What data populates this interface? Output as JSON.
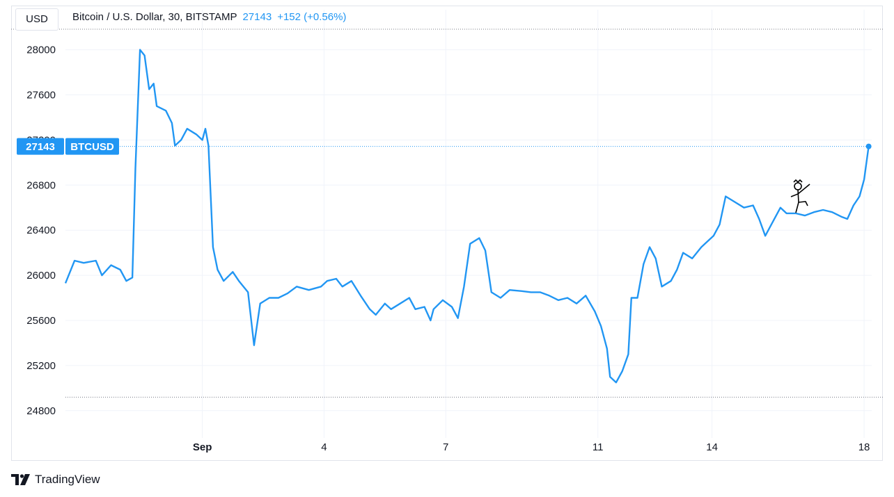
{
  "header": {
    "currency_label": "USD",
    "symbol_text": "Bitcoin / U.S. Dollar, 30, BITSTAMP",
    "last_price": "27143",
    "change": "+152 (+0.56%)"
  },
  "price_tag": {
    "value": "27143",
    "ticker": "BTCUSD"
  },
  "branding": {
    "name": "TradingView"
  },
  "colors": {
    "line": "#2196f3",
    "grid": "#f0f3fa",
    "text": "#131722",
    "tag": "#2196f3"
  },
  "chart_data": {
    "type": "line",
    "series": [
      {
        "values": [
          [
            0.0,
            25930
          ],
          [
            0.3,
            26130
          ],
          [
            0.6,
            26110
          ],
          [
            1.0,
            26130
          ],
          [
            1.2,
            26000
          ],
          [
            1.5,
            26090
          ],
          [
            1.8,
            26050
          ],
          [
            2.0,
            25950
          ],
          [
            2.2,
            25980
          ],
          [
            2.3,
            26950
          ],
          [
            2.45,
            28000
          ],
          [
            2.6,
            27950
          ],
          [
            2.75,
            27650
          ],
          [
            2.9,
            27700
          ],
          [
            3.0,
            27500
          ],
          [
            3.3,
            27460
          ],
          [
            3.5,
            27350
          ],
          [
            3.6,
            27150
          ],
          [
            3.8,
            27200
          ],
          [
            4.0,
            27300
          ],
          [
            4.3,
            27250
          ],
          [
            4.5,
            27200
          ],
          [
            4.6,
            27300
          ],
          [
            4.7,
            27150
          ],
          [
            4.85,
            26250
          ],
          [
            5.0,
            26050
          ],
          [
            5.2,
            25950
          ],
          [
            5.5,
            26030
          ],
          [
            5.7,
            25950
          ],
          [
            6.0,
            25850
          ],
          [
            6.2,
            25380
          ],
          [
            6.4,
            25750
          ],
          [
            6.7,
            25800
          ],
          [
            7.0,
            25800
          ],
          [
            7.3,
            25840
          ],
          [
            7.6,
            25900
          ],
          [
            8.0,
            25870
          ],
          [
            8.4,
            25900
          ],
          [
            8.6,
            25950
          ],
          [
            8.9,
            25970
          ],
          [
            9.1,
            25900
          ],
          [
            9.4,
            25950
          ],
          [
            9.7,
            25820
          ],
          [
            10.0,
            25700
          ],
          [
            10.2,
            25650
          ],
          [
            10.5,
            25750
          ],
          [
            10.7,
            25700
          ],
          [
            11.0,
            25750
          ],
          [
            11.3,
            25800
          ],
          [
            11.5,
            25700
          ],
          [
            11.8,
            25720
          ],
          [
            12.0,
            25600
          ],
          [
            12.1,
            25700
          ],
          [
            12.4,
            25780
          ],
          [
            12.7,
            25720
          ],
          [
            12.9,
            25620
          ],
          [
            13.1,
            25900
          ],
          [
            13.3,
            26280
          ],
          [
            13.6,
            26330
          ],
          [
            13.8,
            26220
          ],
          [
            14.0,
            25850
          ],
          [
            14.3,
            25800
          ],
          [
            14.6,
            25870
          ],
          [
            15.0,
            25860
          ],
          [
            15.3,
            25850
          ],
          [
            15.6,
            25850
          ],
          [
            15.9,
            25820
          ],
          [
            16.2,
            25780
          ],
          [
            16.5,
            25800
          ],
          [
            16.8,
            25750
          ],
          [
            17.1,
            25820
          ],
          [
            17.4,
            25680
          ],
          [
            17.6,
            25550
          ],
          [
            17.8,
            25350
          ],
          [
            17.9,
            25100
          ],
          [
            18.1,
            25050
          ],
          [
            18.3,
            25150
          ],
          [
            18.5,
            25300
          ],
          [
            18.6,
            25800
          ],
          [
            18.8,
            25800
          ],
          [
            19.0,
            26100
          ],
          [
            19.2,
            26250
          ],
          [
            19.4,
            26150
          ],
          [
            19.6,
            25900
          ],
          [
            19.9,
            25950
          ],
          [
            20.1,
            26050
          ],
          [
            20.3,
            26200
          ],
          [
            20.6,
            26150
          ],
          [
            20.9,
            26250
          ],
          [
            21.1,
            26300
          ],
          [
            21.3,
            26350
          ],
          [
            21.5,
            26450
          ],
          [
            21.7,
            26700
          ],
          [
            22.0,
            26650
          ],
          [
            22.3,
            26600
          ],
          [
            22.6,
            26620
          ],
          [
            22.8,
            26500
          ],
          [
            23.0,
            26350
          ],
          [
            23.2,
            26450
          ],
          [
            23.5,
            26600
          ],
          [
            23.7,
            26550
          ],
          [
            24.0,
            26550
          ],
          [
            24.3,
            26530
          ],
          [
            24.6,
            26560
          ],
          [
            24.9,
            26580
          ],
          [
            25.2,
            26560
          ],
          [
            25.5,
            26520
          ],
          [
            25.7,
            26500
          ],
          [
            25.9,
            26620
          ],
          [
            26.1,
            26700
          ],
          [
            26.25,
            26850
          ],
          [
            26.4,
            27143
          ]
        ]
      }
    ],
    "x_ticks": [
      {
        "x": 4.5,
        "label": "Sep"
      },
      {
        "x": 8.5,
        "label": "4"
      },
      {
        "x": 12.5,
        "label": "7"
      },
      {
        "x": 17.5,
        "label": "11"
      },
      {
        "x": 21.25,
        "label": "14"
      },
      {
        "x": 26.25,
        "label": "18"
      }
    ],
    "y_ticks": [
      24800,
      25200,
      25600,
      26000,
      26400,
      26800,
      27200,
      27600,
      28000
    ],
    "xlim": [
      0,
      26.5
    ],
    "ylim": [
      24620,
      28170
    ],
    "current_price": 27143,
    "low_reference": 24920,
    "grid": true
  }
}
